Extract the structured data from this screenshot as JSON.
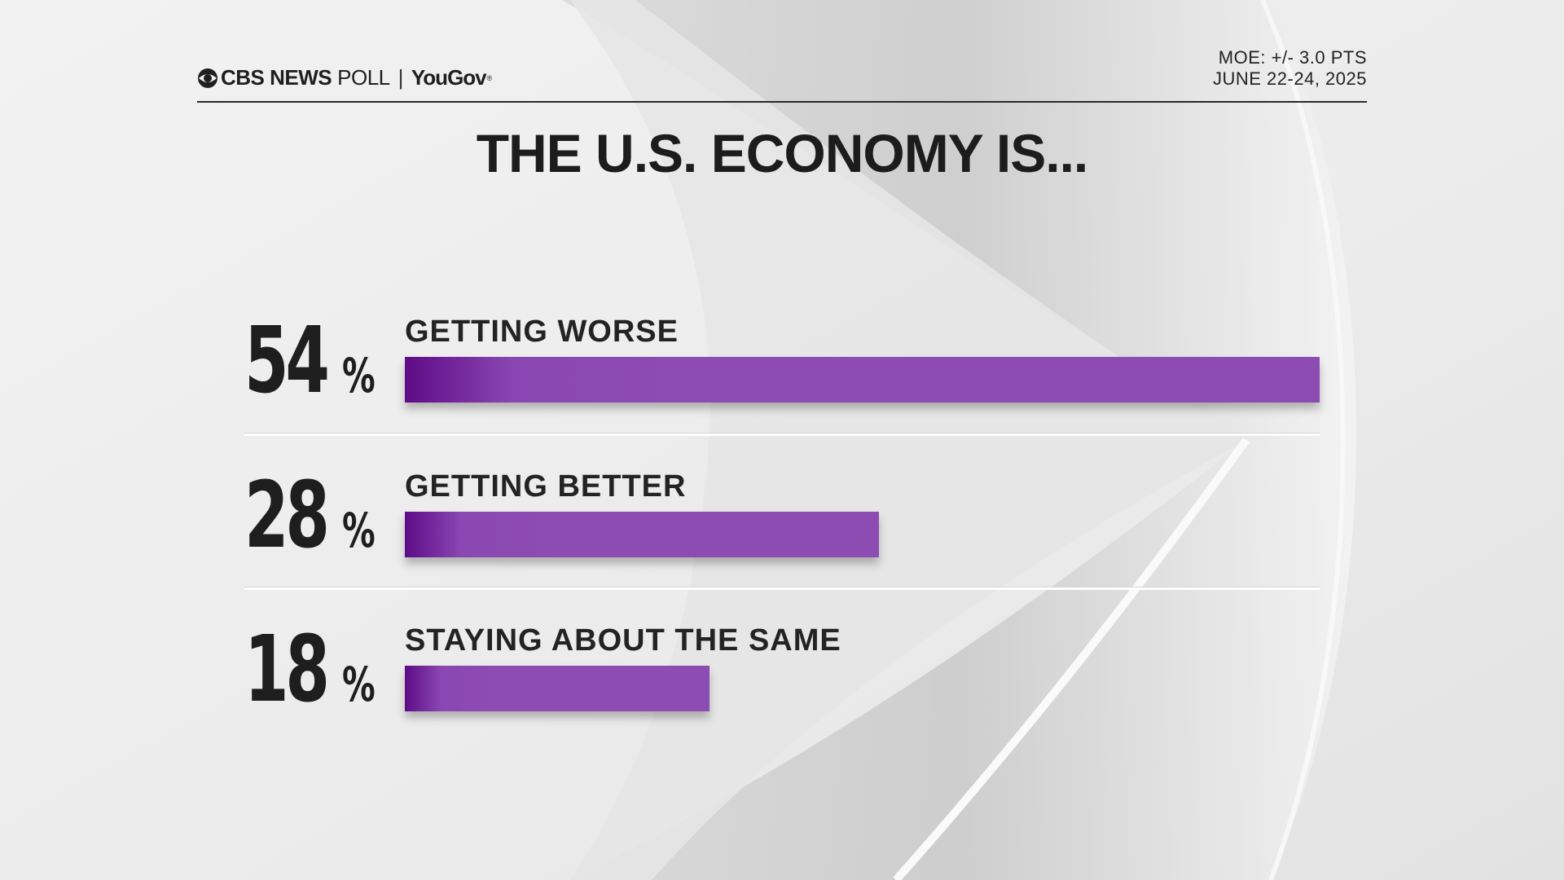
{
  "brand": {
    "cbs": "CBS NEWS",
    "poll": "POLL",
    "separator": "|",
    "partner": "YouGov",
    "registered": "®"
  },
  "meta": {
    "moe": "MOE: +/- 3.0 PTS",
    "date": "JUNE 22-24, 2025"
  },
  "colors": {
    "bar": "#8c4cb1",
    "bar_dark": "#5e0c86",
    "text": "#1e1e1e"
  },
  "chart_data": {
    "type": "bar",
    "title": "THE U.S. ECONOMY IS...",
    "categories": [
      "GETTING WORSE",
      "GETTING BETTER",
      "STAYING ABOUT THE SAME"
    ],
    "values": [
      54,
      28,
      18
    ],
    "value_labels": [
      "54",
      "28",
      "18"
    ],
    "unit": "%",
    "orientation": "horizontal",
    "xlim": [
      0,
      54
    ],
    "grid": false
  }
}
